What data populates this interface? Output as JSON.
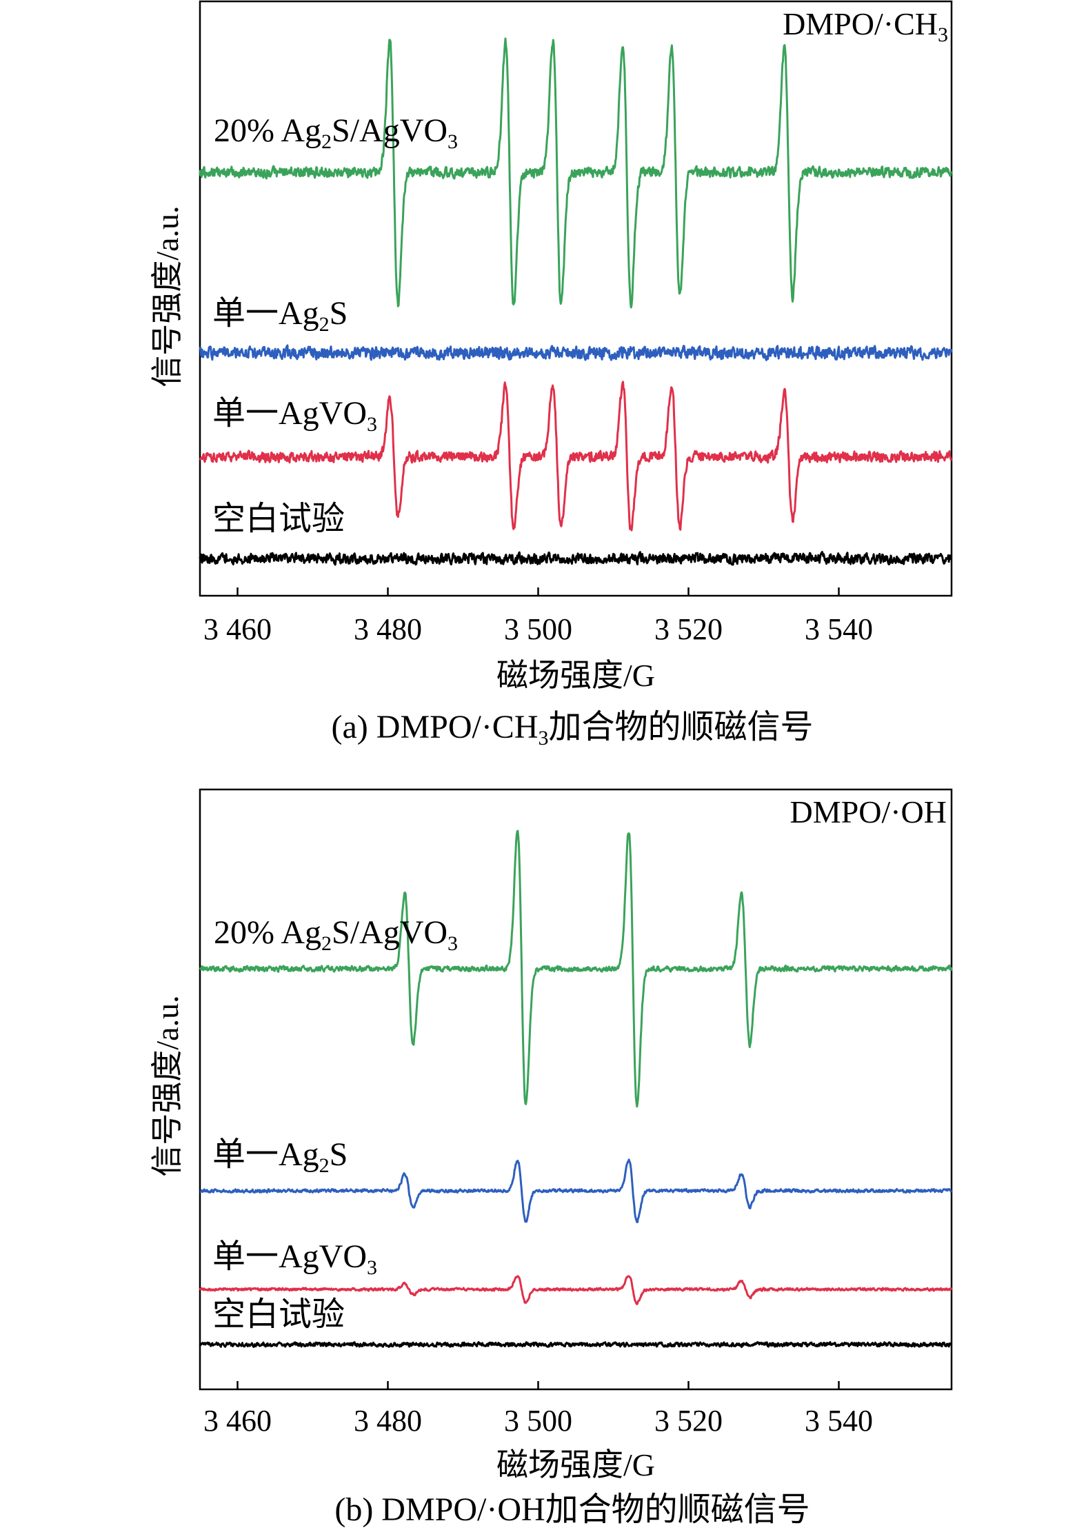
{
  "colors": {
    "composite": "#3aa35a",
    "ag2s": "#2d5fbf",
    "agvo3": "#e0304a",
    "blank": "#000000"
  },
  "chart_data": [
    {
      "type": "line",
      "panel": "a",
      "tag": "DMPO/·CH₃",
      "caption": "(a) DMPO/·CH₃加合物的顺磁信号",
      "xlabel": "磁场强度/G",
      "ylabel": "信号强度/a.u.",
      "xlim": [
        3455,
        3555
      ],
      "xticks": [
        3460,
        3480,
        3500,
        3520,
        3540
      ],
      "xtick_labels": [
        "3 460",
        "3 480",
        "3 500",
        "3 520",
        "3 540"
      ],
      "peak_centers": [
        3480.8,
        3496.2,
        3502.5,
        3511.8,
        3518.3,
        3533.3
      ],
      "series": [
        {
          "name": "20% Ag₂S/AgVO₃",
          "color_key": "composite",
          "relative_amplitude": 1.0,
          "peak_amplitudes": [
            1.0,
            1.0,
            1.0,
            1.0,
            0.95,
            0.95
          ],
          "noise": 0.05
        },
        {
          "name": "单一Ag₂S",
          "color_key": "ag2s",
          "relative_amplitude": 0.0,
          "peak_amplitudes": [
            0,
            0,
            0,
            0,
            0,
            0
          ],
          "noise": 0.06
        },
        {
          "name": "单一AgVO₃",
          "color_key": "agvo3",
          "relative_amplitude": 0.55,
          "peak_amplitudes": [
            0.45,
            0.55,
            0.55,
            0.55,
            0.55,
            0.5
          ],
          "noise": 0.05
        },
        {
          "name": "空白试验",
          "color_key": "blank",
          "relative_amplitude": 0.0,
          "peak_amplitudes": [
            0,
            0,
            0,
            0,
            0,
            0
          ],
          "noise": 0.05
        }
      ],
      "grid": false
    },
    {
      "type": "line",
      "panel": "b",
      "tag": "DMPO/·OH",
      "caption": "(b) DMPO/·OH加合物的顺磁信号",
      "xlabel": "磁场强度/G",
      "ylabel": "信号强度/a.u.",
      "xlim": [
        3455,
        3555
      ],
      "xticks": [
        3460,
        3480,
        3500,
        3520,
        3540
      ],
      "xtick_labels": [
        "3 460",
        "3 480",
        "3 500",
        "3 520",
        "3 540"
      ],
      "peak_centers": [
        3482.8,
        3497.8,
        3512.6,
        3527.6
      ],
      "series": [
        {
          "name": "20% Ag₂S/AgVO₃",
          "color_key": "composite",
          "relative_amplitude": 1.0,
          "peak_amplitudes": [
            0.55,
            1.0,
            1.0,
            0.55
          ],
          "noise": 0.02
        },
        {
          "name": "单一Ag₂S",
          "color_key": "ag2s",
          "relative_amplitude": 0.22,
          "peak_amplitudes": [
            0.12,
            0.22,
            0.22,
            0.12
          ],
          "noise": 0.01
        },
        {
          "name": "单一AgVO₃",
          "color_key": "agvo3",
          "relative_amplitude": 0.1,
          "peak_amplitudes": [
            0.04,
            0.1,
            0.1,
            0.06
          ],
          "noise": 0.008
        },
        {
          "name": "空白试验",
          "color_key": "blank",
          "relative_amplitude": 0.0,
          "peak_amplitudes": [
            0,
            0,
            0,
            0
          ],
          "noise": 0.012
        }
      ],
      "grid": false
    }
  ]
}
